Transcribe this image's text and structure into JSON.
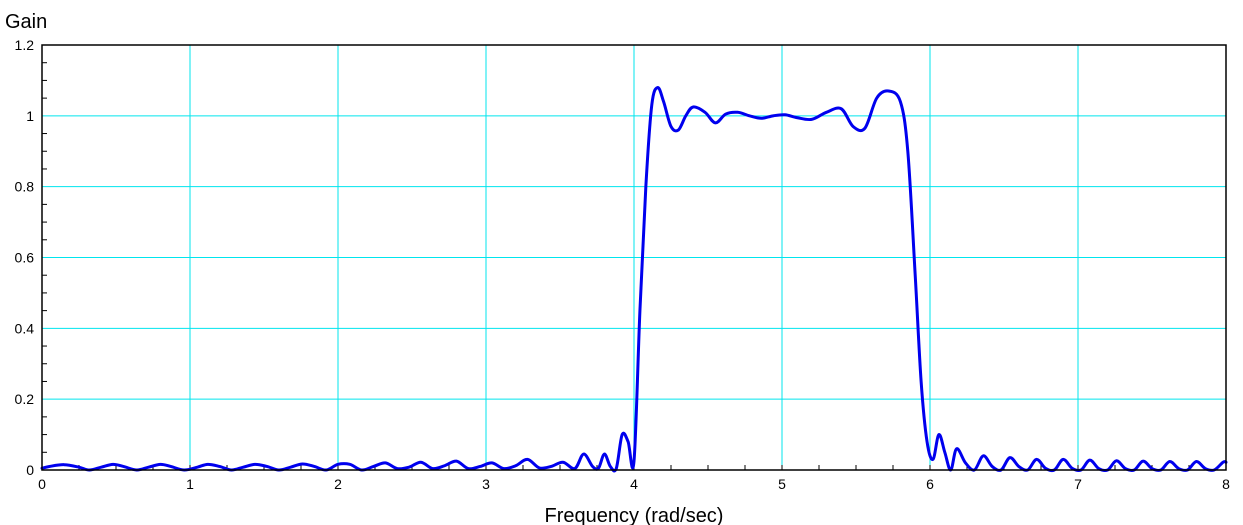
{
  "chart_data": {
    "type": "line",
    "title": "",
    "xlabel": "Frequency (rad/sec)",
    "ylabel": "Gain",
    "xlim": [
      0,
      8
    ],
    "ylim": [
      0,
      1.2
    ],
    "x_ticks": [
      "0",
      "1",
      "2",
      "3",
      "4",
      "5",
      "6",
      "7",
      "8"
    ],
    "y_ticks": [
      "0",
      "0.2",
      "0.4",
      "0.6",
      "0.8",
      "1",
      "1.2"
    ],
    "grid": true,
    "colors": {
      "line": "#0000ee",
      "grid": "#00e5ee",
      "axes": "#000000"
    },
    "series": [
      {
        "x": [
          0,
          0.05,
          0.15,
          0.25,
          0.32,
          0.4,
          0.48,
          0.55,
          0.64,
          0.72,
          0.8,
          0.87,
          0.96,
          1.05,
          1.12,
          1.2,
          1.28,
          1.36,
          1.44,
          1.52,
          1.6,
          1.68,
          1.76,
          1.84,
          1.92,
          2.0,
          2.08,
          2.16,
          2.24,
          2.32,
          2.4,
          2.48,
          2.56,
          2.64,
          2.72,
          2.8,
          2.88,
          2.96,
          3.04,
          3.12,
          3.2,
          3.28,
          3.36,
          3.44,
          3.52,
          3.6,
          3.66,
          3.72,
          3.76,
          3.8,
          3.84,
          3.88,
          3.92,
          3.96,
          4.0,
          4.04,
          4.08,
          4.12,
          4.16,
          4.2,
          4.25,
          4.3,
          4.35,
          4.4,
          4.48,
          4.55,
          4.62,
          4.7,
          4.78,
          4.86,
          4.94,
          5.02,
          5.1,
          5.2,
          5.3,
          5.4,
          5.48,
          5.56,
          5.64,
          5.72,
          5.8,
          5.85,
          5.9,
          5.94,
          5.98,
          6.02,
          6.06,
          6.1,
          6.14,
          6.18,
          6.24,
          6.3,
          6.36,
          6.42,
          6.48,
          6.54,
          6.6,
          6.66,
          6.72,
          6.78,
          6.84,
          6.9,
          6.96,
          7.02,
          7.08,
          7.14,
          7.2,
          7.26,
          7.32,
          7.38,
          7.44,
          7.5,
          7.56,
          7.62,
          7.68,
          7.74,
          7.8,
          7.86,
          7.92,
          7.98,
          8.0
        ],
        "y": [
          0.005,
          0.01,
          0.015,
          0.008,
          0.0,
          0.008,
          0.016,
          0.01,
          0.0,
          0.008,
          0.016,
          0.01,
          0.0,
          0.008,
          0.016,
          0.01,
          0.0,
          0.008,
          0.016,
          0.01,
          0.0,
          0.008,
          0.017,
          0.01,
          0.0,
          0.016,
          0.016,
          0.0,
          0.01,
          0.02,
          0.004,
          0.008,
          0.022,
          0.004,
          0.012,
          0.025,
          0.004,
          0.01,
          0.02,
          0.004,
          0.012,
          0.03,
          0.006,
          0.01,
          0.022,
          0.004,
          0.045,
          0.01,
          0.005,
          0.045,
          0.01,
          0.004,
          0.1,
          0.08,
          0.025,
          0.45,
          0.8,
          1.03,
          1.08,
          1.04,
          0.97,
          0.96,
          1.0,
          1.025,
          1.01,
          0.98,
          1.005,
          1.01,
          1.0,
          0.993,
          1.0,
          1.003,
          0.995,
          0.99,
          1.01,
          1.02,
          0.97,
          0.965,
          1.05,
          1.07,
          1.04,
          0.9,
          0.55,
          0.25,
          0.08,
          0.03,
          0.1,
          0.05,
          0.0,
          0.06,
          0.02,
          0.0,
          0.04,
          0.01,
          0.0,
          0.035,
          0.01,
          0.0,
          0.03,
          0.005,
          0.0,
          0.03,
          0.005,
          0.0,
          0.028,
          0.004,
          0.0,
          0.026,
          0.004,
          0.0,
          0.025,
          0.004,
          0.0,
          0.024,
          0.004,
          0.0,
          0.024,
          0.004,
          0.0,
          0.022,
          0.022
        ]
      }
    ]
  }
}
